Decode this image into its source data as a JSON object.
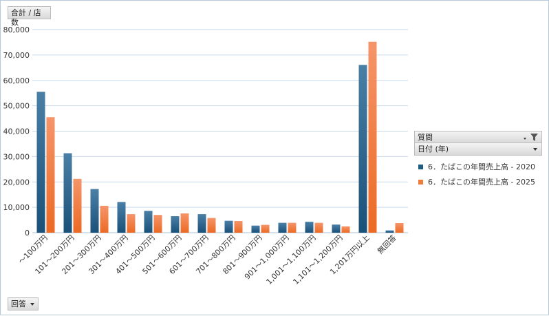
{
  "value_field": "合計 / 店数",
  "row_field": "回答",
  "legend": {
    "filter_field": "質問",
    "column_field": "日付 (年)",
    "items": [
      {
        "label": "6．たばこの年間売上高 - 2020",
        "color": "#1f5c84"
      },
      {
        "label": "6．たばこの年間売上高 - 2025",
        "color": "#f07b3a"
      }
    ]
  },
  "chart_data": {
    "type": "bar",
    "categories": [
      "～100万円",
      "101～200万円",
      "201～300万円",
      "301～400万円",
      "401～500万円",
      "501～600万円",
      "601～700万円",
      "701～800万円",
      "801～900万円",
      "901～1,000万円",
      "1,001～1,100万円",
      "1,101～1,200万円",
      "1,201万円以上",
      "無回答"
    ],
    "series": [
      {
        "name": "6．たばこの年間売上高 - 2020",
        "color": "#1f5c84",
        "values": [
          55500,
          31300,
          17200,
          12100,
          8600,
          6500,
          7300,
          4700,
          2800,
          3900,
          4300,
          3200,
          66100,
          900
        ]
      },
      {
        "name": "6．たばこの年間売上高 - 2025",
        "color": "#f07b3a",
        "values": [
          45500,
          21200,
          10600,
          7300,
          7000,
          7600,
          5800,
          4600,
          3100,
          3900,
          3900,
          2500,
          75200,
          3800
        ]
      }
    ],
    "ylim": [
      0,
      80000
    ],
    "yticks": [
      "0",
      "10,000",
      "20,000",
      "30,000",
      "40,000",
      "50,000",
      "60,000",
      "70,000",
      "80,000"
    ],
    "grid": true,
    "legend_position": "right"
  }
}
